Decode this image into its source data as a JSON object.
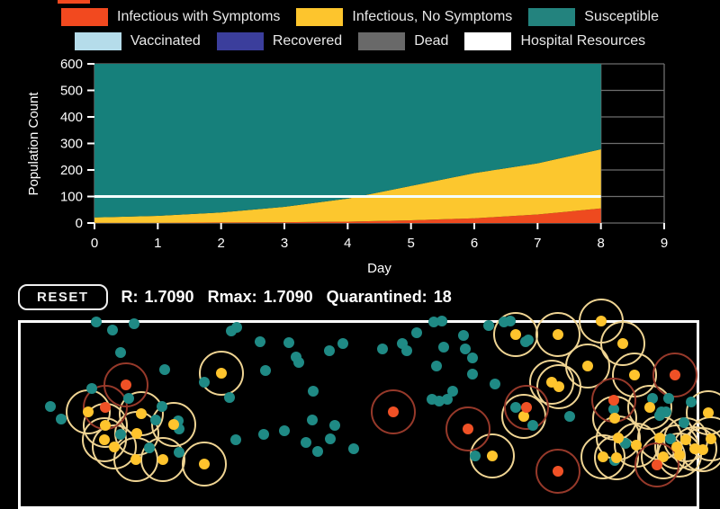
{
  "legend": {
    "cutoff_swatch_color": "#F2491F",
    "rows": [
      [
        {
          "label": "Infectious with Symptoms",
          "color": "#F2491F"
        },
        {
          "label": "Infectious, No Symptoms",
          "color": "#FDC52D"
        },
        {
          "label": "Susceptible",
          "color": "#23837E"
        }
      ],
      [
        {
          "label": "Vaccinated",
          "color": "#B5DCEA"
        },
        {
          "label": "Recovered",
          "color": "#3B3E9C"
        },
        {
          "label": "Dead",
          "color": "#696969"
        },
        {
          "label": "Hospital Resources",
          "color": "#FFFFFF"
        }
      ]
    ]
  },
  "chart_data": {
    "type": "area",
    "stacked": true,
    "title": "",
    "xlabel": "Day",
    "ylabel": "Population Count",
    "xlim": [
      0,
      9
    ],
    "ylim": [
      0,
      600
    ],
    "xticks": [
      0,
      1,
      2,
      3,
      4,
      5,
      6,
      7,
      8,
      9
    ],
    "yticks": [
      0,
      100,
      200,
      300,
      400,
      500,
      600
    ],
    "x": [
      0,
      1,
      2,
      3,
      4,
      5,
      6,
      7,
      8
    ],
    "series": [
      {
        "name": "Infectious with Symptoms",
        "color": "#EE4A1F",
        "values": [
          1,
          1,
          2,
          3,
          5,
          10,
          18,
          32,
          55
        ]
      },
      {
        "name": "Infectious, No Symptoms",
        "color": "#FCC72E",
        "values": [
          20,
          26,
          38,
          58,
          87,
          130,
          170,
          193,
          223
        ]
      },
      {
        "name": "Susceptible",
        "color": "#16807B",
        "values": [
          579,
          573,
          560,
          539,
          508,
          460,
          412,
          375,
          322
        ]
      }
    ],
    "hospital_line": {
      "label": "Hospital Resources",
      "value": 100,
      "color": "#F4FFFE"
    },
    "grid": {
      "visible": true,
      "color": "#6E6E6E"
    },
    "tick_color": "#FFFFFF",
    "text_color": "#FFFFFF"
  },
  "status_bar": {
    "reset_label": "RESET",
    "metrics": [
      {
        "label": "R:",
        "value": "1.7090"
      },
      {
        "label": "Rmax:",
        "value": "1.7090"
      },
      {
        "label": "Quarantined:",
        "value": "18"
      }
    ]
  },
  "simulation": {
    "border_color": "#FFFFFF",
    "dot_radius": 6,
    "ring_radius": 25,
    "groups": [
      {
        "name": "susceptible",
        "color": "#1F8A85",
        "ring_color": null,
        "points": [
          [
            107,
            358
          ],
          [
            125,
            367
          ],
          [
            149,
            360
          ],
          [
            257,
            368
          ],
          [
            263,
            364
          ],
          [
            289,
            380
          ],
          [
            321,
            381
          ],
          [
            329,
            397
          ],
          [
            366,
            390
          ],
          [
            381,
            382
          ],
          [
            134,
            392
          ],
          [
            183,
            411
          ],
          [
            102,
            432
          ],
          [
            227,
            425
          ],
          [
            255,
            442
          ],
          [
            348,
            435
          ],
          [
            143,
            443
          ],
          [
            180,
            452
          ],
          [
            56,
            452
          ],
          [
            68,
            466
          ],
          [
            173,
            467
          ],
          [
            198,
            468
          ],
          [
            199,
            477
          ],
          [
            134,
            483
          ],
          [
            166,
            498
          ],
          [
            199,
            503
          ],
          [
            262,
            489
          ],
          [
            293,
            483
          ],
          [
            316,
            479
          ],
          [
            340,
            492
          ],
          [
            353,
            502
          ],
          [
            347,
            467
          ],
          [
            372,
            473
          ],
          [
            367,
            488
          ],
          [
            393,
            499
          ],
          [
            295,
            412
          ],
          [
            332,
            403
          ],
          [
            425,
            388
          ],
          [
            447,
            382
          ],
          [
            452,
            390
          ],
          [
            463,
            370
          ],
          [
            482,
            358
          ],
          [
            491,
            357
          ],
          [
            493,
            386
          ],
          [
            515,
            373
          ],
          [
            517,
            388
          ],
          [
            525,
            398
          ],
          [
            485,
            407
          ],
          [
            525,
            416
          ],
          [
            550,
            427
          ],
          [
            503,
            435
          ],
          [
            480,
            444
          ],
          [
            488,
            446
          ],
          [
            497,
            444
          ],
          [
            543,
            362
          ],
          [
            560,
            358
          ],
          [
            567,
            357
          ],
          [
            587,
            378
          ],
          [
            584,
            380
          ],
          [
            573,
            453
          ],
          [
            592,
            473
          ],
          [
            633,
            463
          ],
          [
            682,
            455
          ],
          [
            735,
            458
          ],
          [
            743,
            443
          ],
          [
            528,
            507
          ],
          [
            695,
            493
          ],
          [
            725,
            443
          ],
          [
            740,
            458
          ],
          [
            745,
            488
          ],
          [
            768,
            447
          ],
          [
            733,
            462
          ],
          [
            760,
            470
          ],
          [
            683,
            512
          ]
        ]
      },
      {
        "name": "infectious-no-symptoms",
        "color": "#FFC42D",
        "ring_color": "#EFD493",
        "points": [
          [
            246,
            415
          ],
          [
            98,
            458
          ],
          [
            117,
            473
          ],
          [
            116,
            489
          ],
          [
            152,
            482
          ],
          [
            157,
            460
          ],
          [
            127,
            497
          ],
          [
            193,
            472
          ],
          [
            151,
            511
          ],
          [
            181,
            511
          ],
          [
            227,
            516
          ],
          [
            573,
            372
          ],
          [
            620,
            372
          ],
          [
            668,
            357
          ],
          [
            692,
            382
          ],
          [
            613,
            425
          ],
          [
            621,
            430
          ],
          [
            653,
            407
          ],
          [
            582,
            463
          ],
          [
            705,
            417
          ],
          [
            722,
            453
          ],
          [
            683,
            465
          ],
          [
            687,
            487
          ],
          [
            707,
            495
          ],
          [
            685,
            509
          ],
          [
            752,
            497
          ],
          [
            772,
            499
          ],
          [
            547,
            507
          ],
          [
            670,
            508
          ],
          [
            733,
            487
          ],
          [
            737,
            508
          ],
          [
            755,
            506
          ],
          [
            762,
            489
          ],
          [
            787,
            459
          ],
          [
            790,
            488
          ],
          [
            781,
            500
          ]
        ]
      },
      {
        "name": "infectious-symptoms",
        "color": "#F05126",
        "ring_color": "#96392A",
        "points": [
          [
            140,
            428
          ],
          [
            117,
            453
          ],
          [
            437,
            458
          ],
          [
            520,
            477
          ],
          [
            585,
            453
          ],
          [
            750,
            417
          ],
          [
            682,
            445
          ],
          [
            620,
            524
          ],
          [
            730,
            517
          ]
        ]
      }
    ]
  }
}
